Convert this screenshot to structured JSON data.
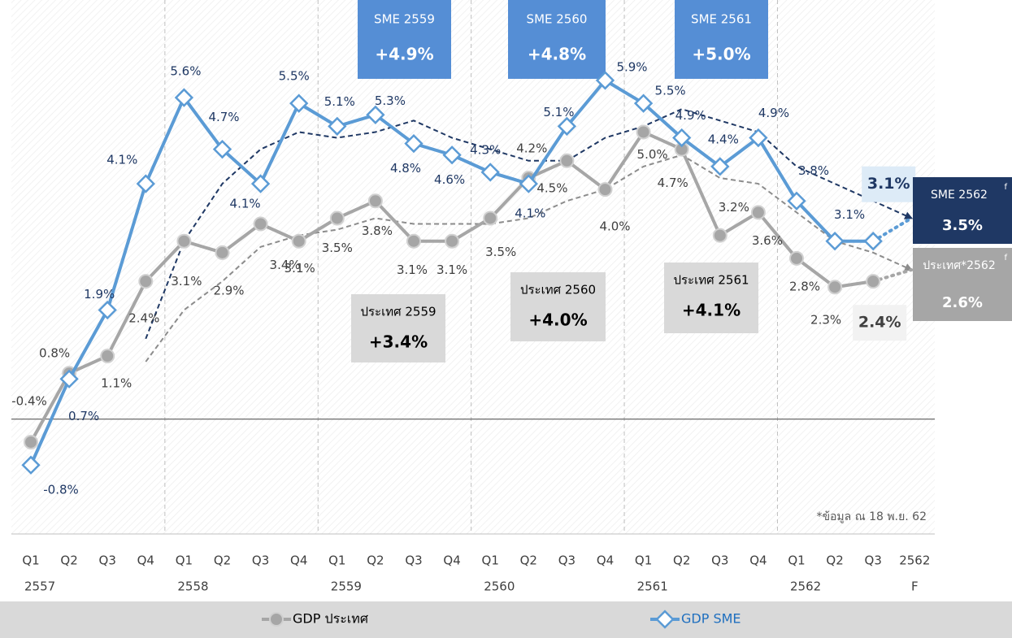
{
  "chart_data": {
    "type": "line",
    "categories": [
      "Q1",
      "Q2",
      "Q3",
      "Q4",
      "Q1",
      "Q2",
      "Q3",
      "Q4",
      "Q1",
      "Q2",
      "Q3",
      "Q4",
      "Q1",
      "Q2",
      "Q3",
      "Q4",
      "Q1",
      "Q2",
      "Q3",
      "Q4",
      "Q1",
      "Q2",
      "Q3",
      "2562"
    ],
    "x_groups": [
      "2557",
      null,
      null,
      null,
      "2558",
      null,
      null,
      null,
      "2559",
      null,
      null,
      null,
      "2560",
      null,
      null,
      null,
      "2561",
      null,
      null,
      null,
      "2562",
      null,
      null,
      "F"
    ],
    "ylim": [
      -2,
      7.3
    ],
    "series": [
      {
        "name": "GDP ประเทศ",
        "color": "#a6a6a6",
        "label_color": "#404040",
        "box_color": "#a6a6a6",
        "values": [
          -0.4,
          0.8,
          1.1,
          2.4,
          3.1,
          2.9,
          3.4,
          3.1,
          3.5,
          3.8,
          3.1,
          3.1,
          3.5,
          4.2,
          4.5,
          4.0,
          5.0,
          4.7,
          3.2,
          3.6,
          2.8,
          2.3,
          2.4,
          2.6
        ],
        "value_labels": [
          "-0.4%",
          "0.8%",
          "1.1%",
          "2.4%",
          "3.1%",
          "2.9%",
          "3.4%",
          "3.1%",
          "3.5%",
          "3.8%",
          "3.1%",
          "3.1%",
          "3.5%",
          "4.2%",
          "4.5%",
          "4.0%",
          "5.0%",
          "4.7%",
          "3.2%",
          "3.6%",
          "2.8%",
          "2.3%",
          "2.4%",
          "2.6%"
        ],
        "forecast": {
          "title": "ประเทศ*2562",
          "mark": "f"
        }
      },
      {
        "name": "GDP SME",
        "color": "#5b9bd5",
        "label_color": "#1f3864",
        "box_color": "#1f3864",
        "values": [
          -0.8,
          0.7,
          1.9,
          4.1,
          5.6,
          4.7,
          4.1,
          5.5,
          5.1,
          5.3,
          4.8,
          4.6,
          4.3,
          4.1,
          5.1,
          5.9,
          5.5,
          4.9,
          4.4,
          4.9,
          3.8,
          3.1,
          3.1,
          3.5
        ],
        "value_labels": [
          "-0.8%",
          "0.7%",
          "1.9%",
          "4.1%",
          "5.6%",
          "4.7%",
          "4.1%",
          "5.5%",
          "5.1%",
          "5.3%",
          "4.8%",
          "4.6%",
          "4.3%",
          "4.1%",
          "5.1%",
          "5.9%",
          "5.5%",
          "4.9%",
          "4.4%",
          "4.9%",
          "3.8%",
          "3.1%",
          "3.1%",
          "3.5%"
        ],
        "forecast": {
          "title": "SME 2562",
          "mark": "f"
        }
      }
    ],
    "trends": [
      {
        "color": "#8c8c8c",
        "values": [
          null,
          null,
          null,
          1.0,
          1.9,
          2.4,
          3.0,
          3.2,
          3.3,
          3.5,
          3.4,
          3.4,
          3.4,
          3.5,
          3.8,
          4.0,
          4.4,
          4.6,
          4.2,
          4.1,
          3.6,
          3.1,
          2.9,
          2.6
        ]
      },
      {
        "color": "#1f3864",
        "values": [
          null,
          null,
          null,
          1.4,
          3.1,
          4.1,
          4.7,
          5.0,
          4.9,
          5.0,
          5.2,
          4.9,
          4.7,
          4.5,
          4.5,
          4.9,
          5.1,
          5.4,
          5.2,
          5.0,
          4.4,
          4.1,
          3.8,
          3.5
        ]
      }
    ],
    "annotations": [
      {
        "title": "SME 2559",
        "text": "+4.9%"
      },
      {
        "title": "SME 2560",
        "text": "+4.8%"
      },
      {
        "title": "SME 2561",
        "text": "+5.0%"
      },
      {
        "title": "ประเทศ 2559",
        "text": "+3.4%"
      },
      {
        "title": "ประเทศ 2560",
        "text": "+4.0%"
      },
      {
        "title": "ประเทศ 2561",
        "text": "+4.1%"
      }
    ],
    "note": "*ข้อมูล ณ 18 พ.ย. 62"
  }
}
